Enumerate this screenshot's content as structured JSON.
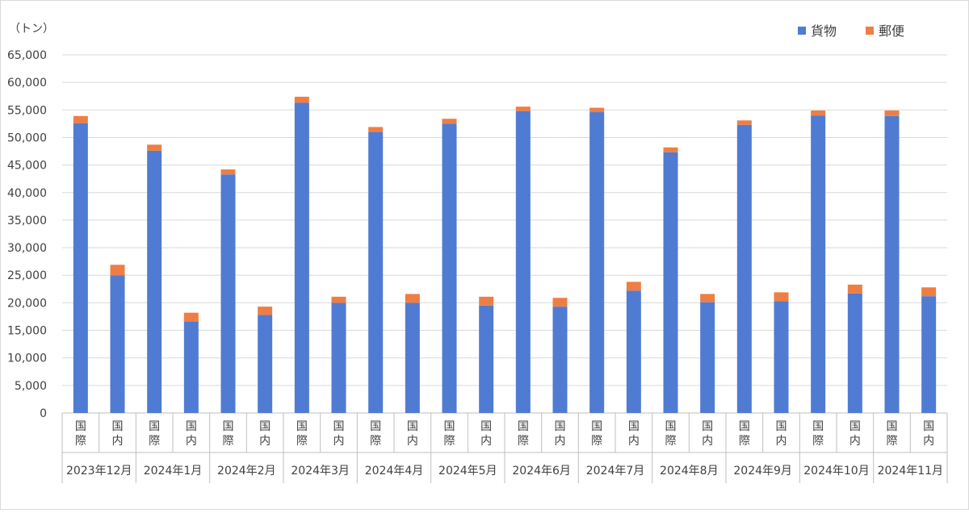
{
  "chart_data": {
    "type": "bar",
    "stacked": true,
    "unit_label": "（トン）",
    "ylim": [
      0,
      65000
    ],
    "y_ticks": [
      "0",
      "5,000",
      "10,000",
      "15,000",
      "20,000",
      "25,000",
      "30,000",
      "35,000",
      "40,000",
      "45,000",
      "50,000",
      "55,000",
      "60,000",
      "65,000"
    ],
    "grid": true,
    "legend_position": "top-right",
    "groups": [
      {
        "label": "2023年12月",
        "bars": [
          {
            "label": "国際",
            "values": [
              52600,
              1300
            ]
          },
          {
            "label": "国内",
            "values": [
              25000,
              1900
            ]
          }
        ]
      },
      {
        "label": "2024年1月",
        "bars": [
          {
            "label": "国際",
            "values": [
              47600,
              1100
            ]
          },
          {
            "label": "国内",
            "values": [
              16600,
              1600
            ]
          }
        ]
      },
      {
        "label": "2024年2月",
        "bars": [
          {
            "label": "国際",
            "values": [
              43300,
              900
            ]
          },
          {
            "label": "国内",
            "values": [
              17800,
              1500
            ]
          }
        ]
      },
      {
        "label": "2024年3月",
        "bars": [
          {
            "label": "国際",
            "values": [
              56300,
              1100
            ]
          },
          {
            "label": "国内",
            "values": [
              20000,
              1100
            ]
          }
        ]
      },
      {
        "label": "2024年4月",
        "bars": [
          {
            "label": "国際",
            "values": [
              51000,
              900
            ]
          },
          {
            "label": "国内",
            "values": [
              20000,
              1600
            ]
          }
        ]
      },
      {
        "label": "2024年5月",
        "bars": [
          {
            "label": "国際",
            "values": [
              52500,
              900
            ]
          },
          {
            "label": "国内",
            "values": [
              19500,
              1600
            ]
          }
        ]
      },
      {
        "label": "2024年6月",
        "bars": [
          {
            "label": "国際",
            "values": [
              54800,
              800
            ]
          },
          {
            "label": "国内",
            "values": [
              19300,
              1600
            ]
          }
        ]
      },
      {
        "label": "2024年7月",
        "bars": [
          {
            "label": "国際",
            "values": [
              54600,
              800
            ]
          },
          {
            "label": "国内",
            "values": [
              22200,
              1600
            ]
          }
        ]
      },
      {
        "label": "2024年8月",
        "bars": [
          {
            "label": "国際",
            "values": [
              47300,
              900
            ]
          },
          {
            "label": "国内",
            "values": [
              20100,
              1500
            ]
          }
        ]
      },
      {
        "label": "2024年9月",
        "bars": [
          {
            "label": "国際",
            "values": [
              52300,
              800
            ]
          },
          {
            "label": "国内",
            "values": [
              20300,
              1600
            ]
          }
        ]
      },
      {
        "label": "2024年10月",
        "bars": [
          {
            "label": "国際",
            "values": [
              54000,
              900
            ]
          },
          {
            "label": "国内",
            "values": [
              21700,
              1600
            ]
          }
        ]
      },
      {
        "label": "2024年11月",
        "bars": [
          {
            "label": "国際",
            "values": [
              53900,
              1000
            ]
          },
          {
            "label": "国内",
            "values": [
              21200,
              1600
            ]
          }
        ]
      }
    ],
    "series": [
      {
        "name": "貨物",
        "color": "#4f7bd3"
      },
      {
        "name": "郵便",
        "color": "#ee7e44"
      }
    ]
  }
}
